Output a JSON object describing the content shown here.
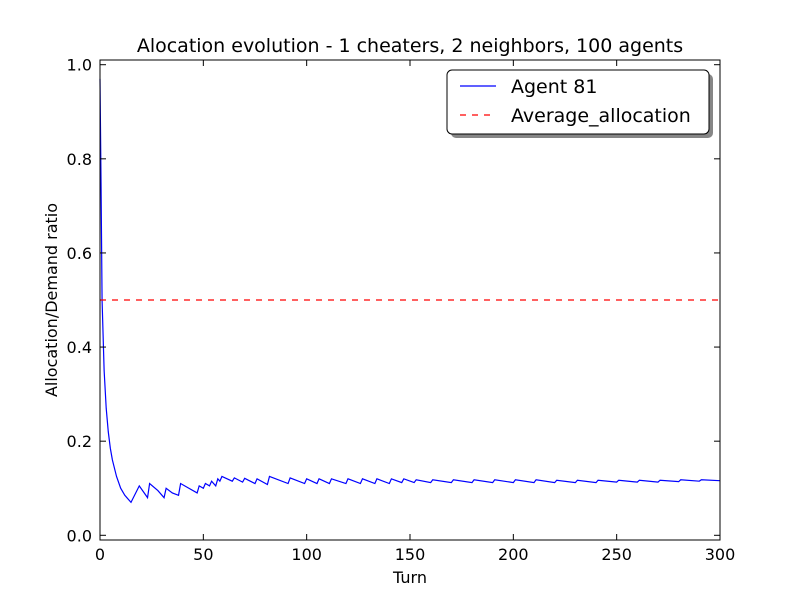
{
  "chart_data": {
    "type": "line",
    "title": "Alocation evolution - 1 cheaters, 2 neighbors, 100 agents",
    "xlabel": "Turn",
    "ylabel": "Allocation/Demand ratio",
    "xlim": [
      0,
      300
    ],
    "ylim": [
      -0.01,
      1.01
    ],
    "xticks": [
      0,
      50,
      100,
      150,
      200,
      250,
      300
    ],
    "xtick_labels": [
      "0",
      "50",
      "100",
      "150",
      "200",
      "250",
      "300"
    ],
    "yticks": [
      0.0,
      0.2,
      0.4,
      0.6,
      0.8,
      1.0
    ],
    "ytick_labels": [
      "0.0",
      "0.2",
      "0.4",
      "0.6",
      "0.8",
      "1.0"
    ],
    "grid": false,
    "legend_position": "top-right",
    "series": [
      {
        "name": "Agent 81",
        "style": "solid",
        "color": "#0000ff",
        "x": [
          0,
          0.5,
          1,
          2,
          3,
          4,
          5,
          6,
          8,
          10,
          12,
          14,
          15,
          19,
          23,
          24,
          28,
          31,
          32,
          35,
          38,
          39,
          43,
          47,
          48,
          50,
          51,
          53,
          54,
          56,
          57,
          58,
          59,
          64,
          65,
          69,
          70,
          75,
          76,
          81,
          82,
          91,
          92,
          99,
          100,
          105,
          106,
          111,
          112,
          119,
          120,
          126,
          127,
          133,
          134,
          140,
          141,
          146,
          147,
          152,
          153,
          160,
          161,
          170,
          171,
          180,
          181,
          190,
          191,
          200,
          201,
          210,
          211,
          220,
          221,
          230,
          231,
          240,
          241,
          250,
          251,
          260,
          261,
          270,
          271,
          280,
          281,
          290,
          291,
          300
        ],
        "y": [
          0.97,
          0.75,
          0.5,
          0.35,
          0.27,
          0.22,
          0.185,
          0.16,
          0.125,
          0.1,
          0.085,
          0.075,
          0.07,
          0.105,
          0.08,
          0.11,
          0.095,
          0.08,
          0.1,
          0.09,
          0.085,
          0.11,
          0.1,
          0.09,
          0.105,
          0.1,
          0.11,
          0.105,
          0.115,
          0.105,
          0.12,
          0.115,
          0.125,
          0.115,
          0.122,
          0.113,
          0.121,
          0.11,
          0.12,
          0.108,
          0.125,
          0.11,
          0.122,
          0.11,
          0.12,
          0.11,
          0.12,
          0.11,
          0.12,
          0.11,
          0.12,
          0.11,
          0.12,
          0.11,
          0.12,
          0.11,
          0.12,
          0.112,
          0.12,
          0.112,
          0.118,
          0.112,
          0.118,
          0.112,
          0.118,
          0.112,
          0.118,
          0.112,
          0.118,
          0.112,
          0.118,
          0.112,
          0.118,
          0.112,
          0.117,
          0.112,
          0.117,
          0.112,
          0.117,
          0.113,
          0.117,
          0.113,
          0.117,
          0.113,
          0.117,
          0.114,
          0.118,
          0.115,
          0.118,
          0.116
        ]
      },
      {
        "name": "Average_allocation",
        "style": "dashed",
        "color": "#ff0000",
        "x": [
          0,
          300
        ],
        "y": [
          0.5,
          0.5
        ]
      }
    ]
  }
}
